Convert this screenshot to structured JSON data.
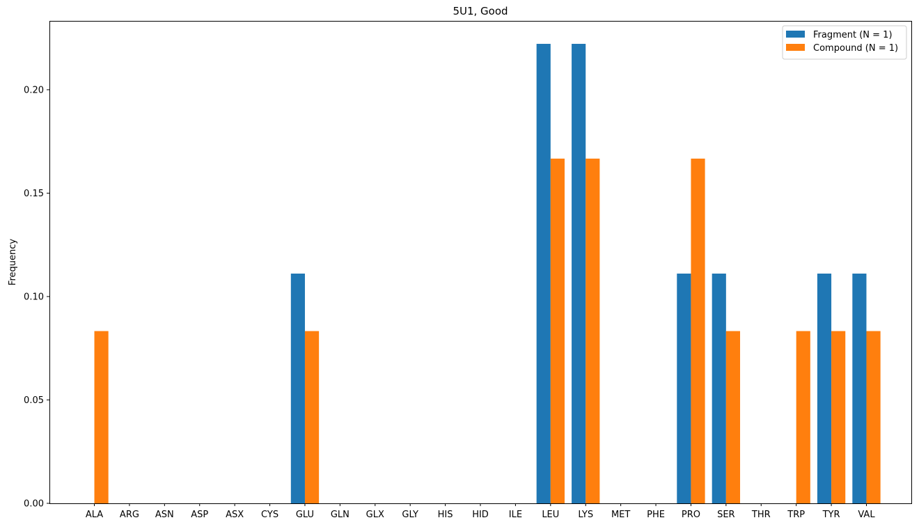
{
  "chart_data": {
    "type": "bar",
    "title": "5U1, Good",
    "xlabel": "",
    "ylabel": "Frequency",
    "ylim": [
      0,
      0.2333
    ],
    "yticks": [
      0.0,
      0.05,
      0.1,
      0.15,
      0.2
    ],
    "ytick_labels": [
      "0.00",
      "0.05",
      "0.10",
      "0.15",
      "0.20"
    ],
    "grid": false,
    "legend_position": "top-right",
    "categories": [
      "ALA",
      "ARG",
      "ASN",
      "ASP",
      "ASX",
      "CYS",
      "GLU",
      "GLN",
      "GLX",
      "GLY",
      "HIS",
      "HID",
      "ILE",
      "LEU",
      "LYS",
      "MET",
      "PHE",
      "PRO",
      "SER",
      "THR",
      "TRP",
      "TYR",
      "VAL"
    ],
    "series": [
      {
        "name": "Fragment (N = 1)",
        "color": "#1f77b4",
        "values": [
          0,
          0,
          0,
          0,
          0,
          0,
          0.1111,
          0,
          0,
          0,
          0,
          0,
          0,
          0.2222,
          0.2222,
          0,
          0,
          0.1111,
          0.1111,
          0,
          0,
          0.1111,
          0.1111
        ]
      },
      {
        "name": "Compound (N = 1)",
        "color": "#ff7f0e",
        "values": [
          0.0833,
          0,
          0,
          0,
          0,
          0,
          0.0833,
          0,
          0,
          0,
          0,
          0,
          0,
          0.1667,
          0.1667,
          0,
          0,
          0.1667,
          0.0833,
          0,
          0.0833,
          0.0833,
          0.0833
        ]
      }
    ]
  }
}
